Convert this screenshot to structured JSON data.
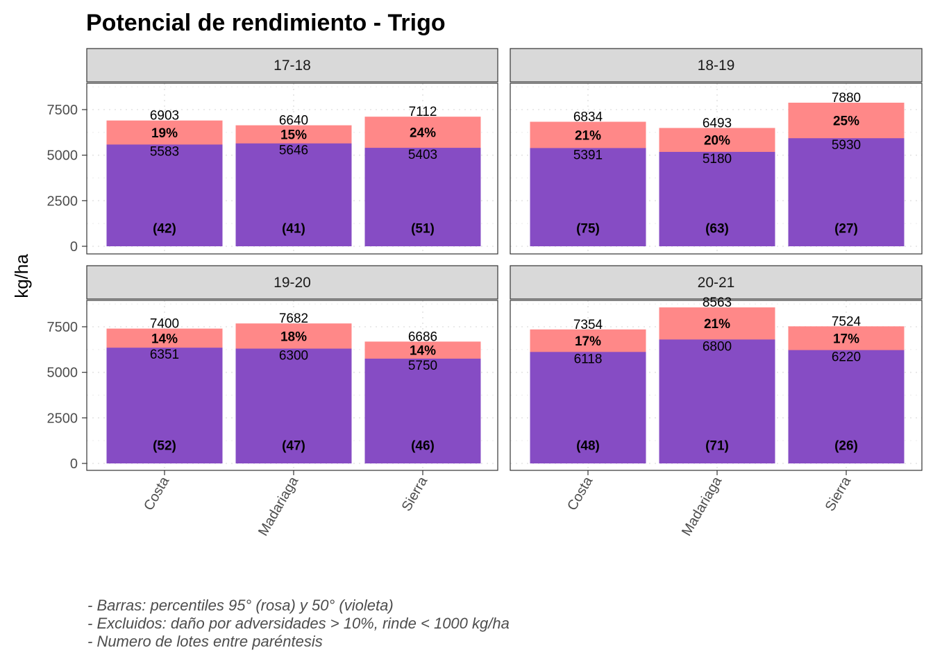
{
  "chart_data": {
    "type": "bar",
    "title": "Potencial de rendimiento - Trigo",
    "ylabel": "kg/ha",
    "xlabel": "",
    "ylim": [
      0,
      9000
    ],
    "y_ticks": [
      0,
      2500,
      5000,
      7500
    ],
    "grid": true,
    "categories": [
      "Costa",
      "Madariaga",
      "Sierra"
    ],
    "series_names": {
      "p95": "percentil 95° (rosa)",
      "p50": "percentil 50° (violeta)"
    },
    "colors": {
      "p95": "#ff8888",
      "p50": "#864cc4"
    },
    "facets": [
      {
        "label": "17-18",
        "p95": [
          6903,
          6640,
          7112
        ],
        "p50": [
          5583,
          5646,
          5403
        ],
        "pct": [
          "19%",
          "15%",
          "24%"
        ],
        "n": [
          "(42)",
          "(41)",
          "(51)"
        ]
      },
      {
        "label": "18-19",
        "p95": [
          6834,
          6493,
          7880
        ],
        "p50": [
          5391,
          5180,
          5930
        ],
        "pct": [
          "21%",
          "20%",
          "25%"
        ],
        "n": [
          "(75)",
          "(63)",
          "(27)"
        ]
      },
      {
        "label": "19-20",
        "p95": [
          7400,
          7682,
          6686
        ],
        "p50": [
          6351,
          6300,
          5750
        ],
        "pct": [
          "14%",
          "18%",
          "14%"
        ],
        "n": [
          "(52)",
          "(47)",
          "(46)"
        ]
      },
      {
        "label": "20-21",
        "p95": [
          7354,
          8563,
          7524
        ],
        "p50": [
          6118,
          6800,
          6220
        ],
        "pct": [
          "17%",
          "21%",
          "17%"
        ],
        "n": [
          "(48)",
          "(71)",
          "(26)"
        ]
      }
    ]
  },
  "caption": {
    "line1": "- Barras: percentiles 95° (rosa) y 50° (violeta)",
    "line2": "- Excluidos: daño por adversidades > 10%, rinde < 1000 kg/ha",
    "line3": "- Numero de lotes entre paréntesis"
  }
}
